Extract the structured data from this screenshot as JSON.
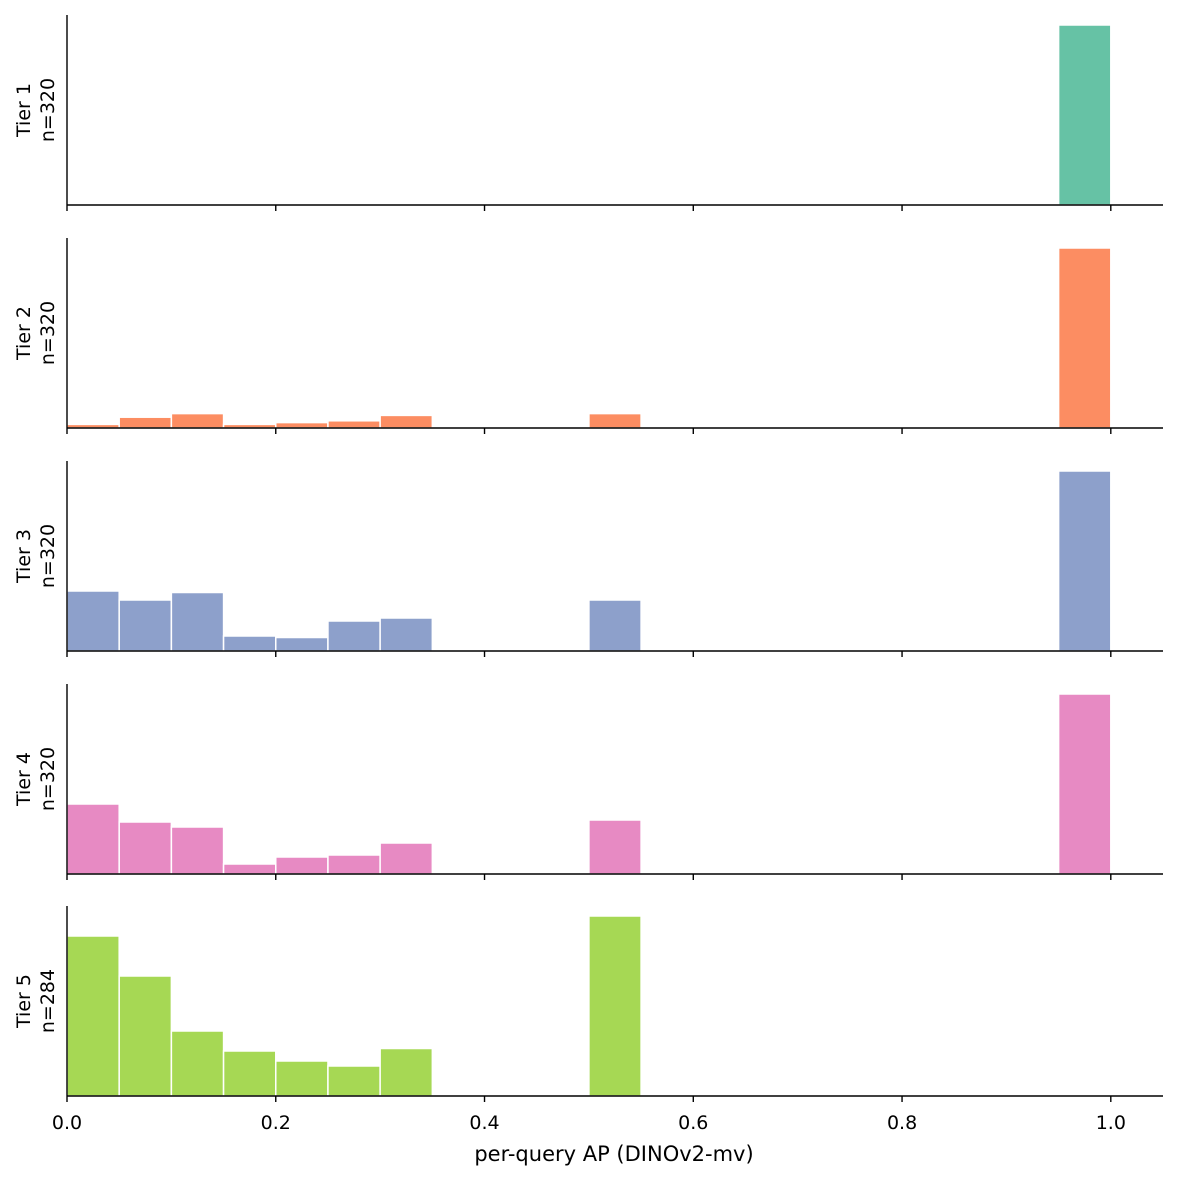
{
  "chart_data": {
    "type": "bar",
    "subtype": "histogram-stack",
    "shared_x": true,
    "xlabel": "per-query AP (DINOv2-mv)",
    "xlim": [
      0.0,
      1.05
    ],
    "xticks": [
      0.0,
      0.2,
      0.4,
      0.6,
      0.8,
      1.0
    ],
    "xtick_labels": [
      "0.0",
      "0.2",
      "0.4",
      "0.6",
      "0.8",
      "1.0"
    ],
    "bin_width": 0.05,
    "bin_edges": [
      0.0,
      0.05,
      0.1,
      0.15,
      0.2,
      0.25,
      0.3,
      0.35,
      0.4,
      0.45,
      0.5,
      0.55,
      0.6,
      0.65,
      0.7,
      0.75,
      0.8,
      0.85,
      0.9,
      0.95,
      1.0
    ],
    "y_ticks_shown": false,
    "panels": [
      {
        "tier_label": "Tier 1",
        "n_label": "n=320",
        "color": "#66c2a5",
        "counts": [
          0,
          0,
          0,
          0,
          0,
          0,
          0,
          0,
          0,
          0,
          0,
          0,
          0,
          0,
          0,
          0,
          0,
          0,
          0,
          320
        ]
      },
      {
        "tier_label": "Tier 2",
        "n_label": "n=320",
        "color": "#fc8d62",
        "counts": [
          1,
          3,
          4,
          1,
          1.5,
          2,
          3.5,
          0,
          0,
          0,
          4,
          0,
          0,
          0,
          0,
          0,
          0,
          0,
          0,
          50
        ]
      },
      {
        "tier_label": "Tier 3",
        "n_label": "n=320",
        "color": "#8da0cb",
        "counts": [
          20,
          17,
          19.5,
          5,
          4.5,
          10,
          11,
          0,
          0,
          0,
          17,
          0,
          0,
          0,
          0,
          0,
          0,
          0,
          0,
          60
        ]
      },
      {
        "tier_label": "Tier 4",
        "n_label": "n=320",
        "color": "#e78ac3",
        "counts": [
          35,
          26,
          23.5,
          5,
          8.5,
          9.5,
          15.5,
          0,
          0,
          0,
          27,
          0,
          0,
          0,
          0,
          0,
          0,
          0,
          0,
          90
        ]
      },
      {
        "tier_label": "Tier 5",
        "n_label": "n=284",
        "color": "#a6d854",
        "counts": [
          64,
          48,
          26,
          18,
          14,
          12,
          19,
          0,
          0,
          0,
          72,
          0,
          0,
          0,
          0,
          0,
          0,
          0,
          0,
          0
        ]
      }
    ]
  }
}
